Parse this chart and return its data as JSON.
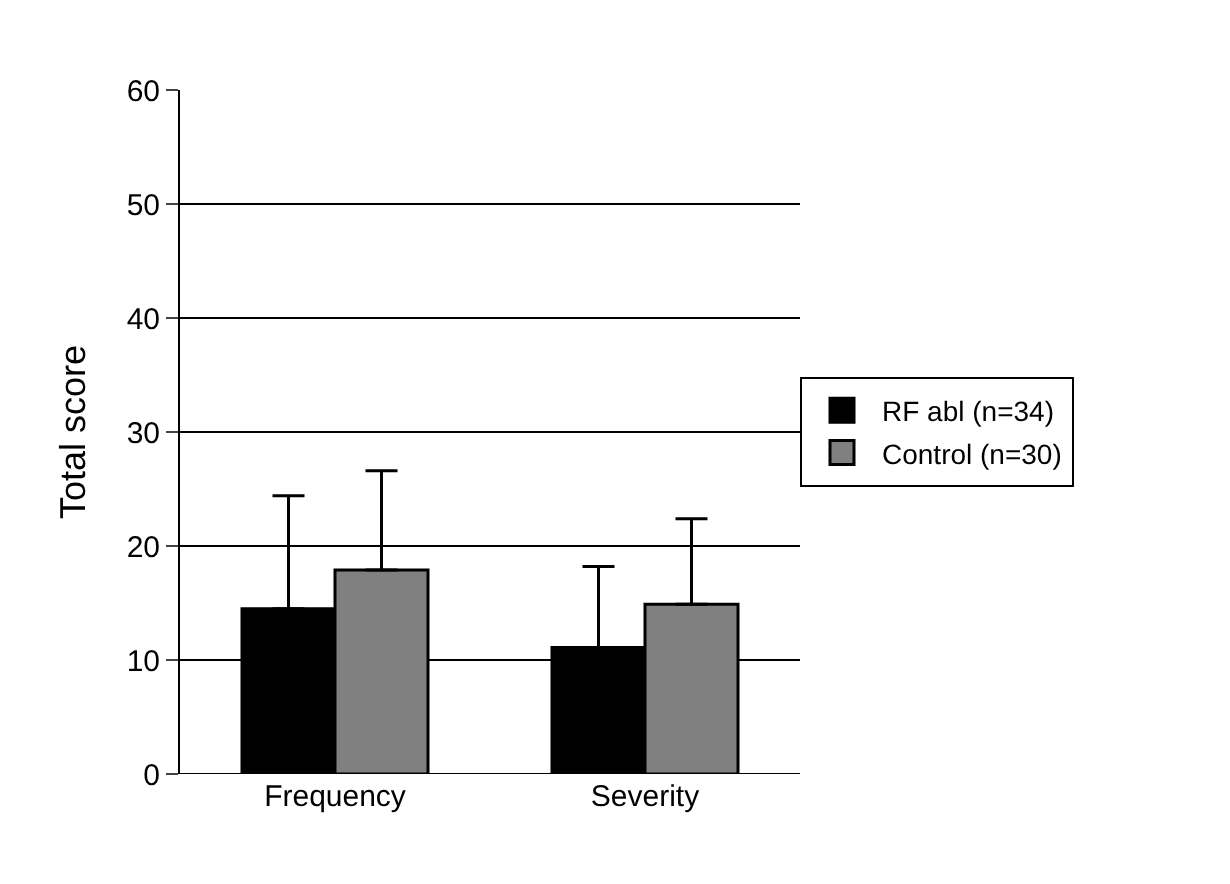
{
  "chart_data": {
    "type": "bar",
    "ylabel": "Total score",
    "categories": [
      "Frequency",
      "Severity"
    ],
    "series": [
      {
        "name": "RF abl (n=34)",
        "color": "#000000",
        "values": [
          14.5,
          11.1
        ],
        "errors": [
          [
            14.5,
            24.4
          ],
          [
            11.1,
            18.2
          ]
        ]
      },
      {
        "name": "Control (n=30)",
        "color": "#808080",
        "values": [
          17.9,
          14.9
        ],
        "errors": [
          [
            17.9,
            26.6
          ],
          [
            14.9,
            22.4
          ]
        ]
      }
    ],
    "ylim": [
      0,
      60
    ],
    "yticks": [
      0,
      10,
      20,
      30,
      40,
      50,
      60
    ],
    "grid": "y",
    "legend": "right"
  }
}
